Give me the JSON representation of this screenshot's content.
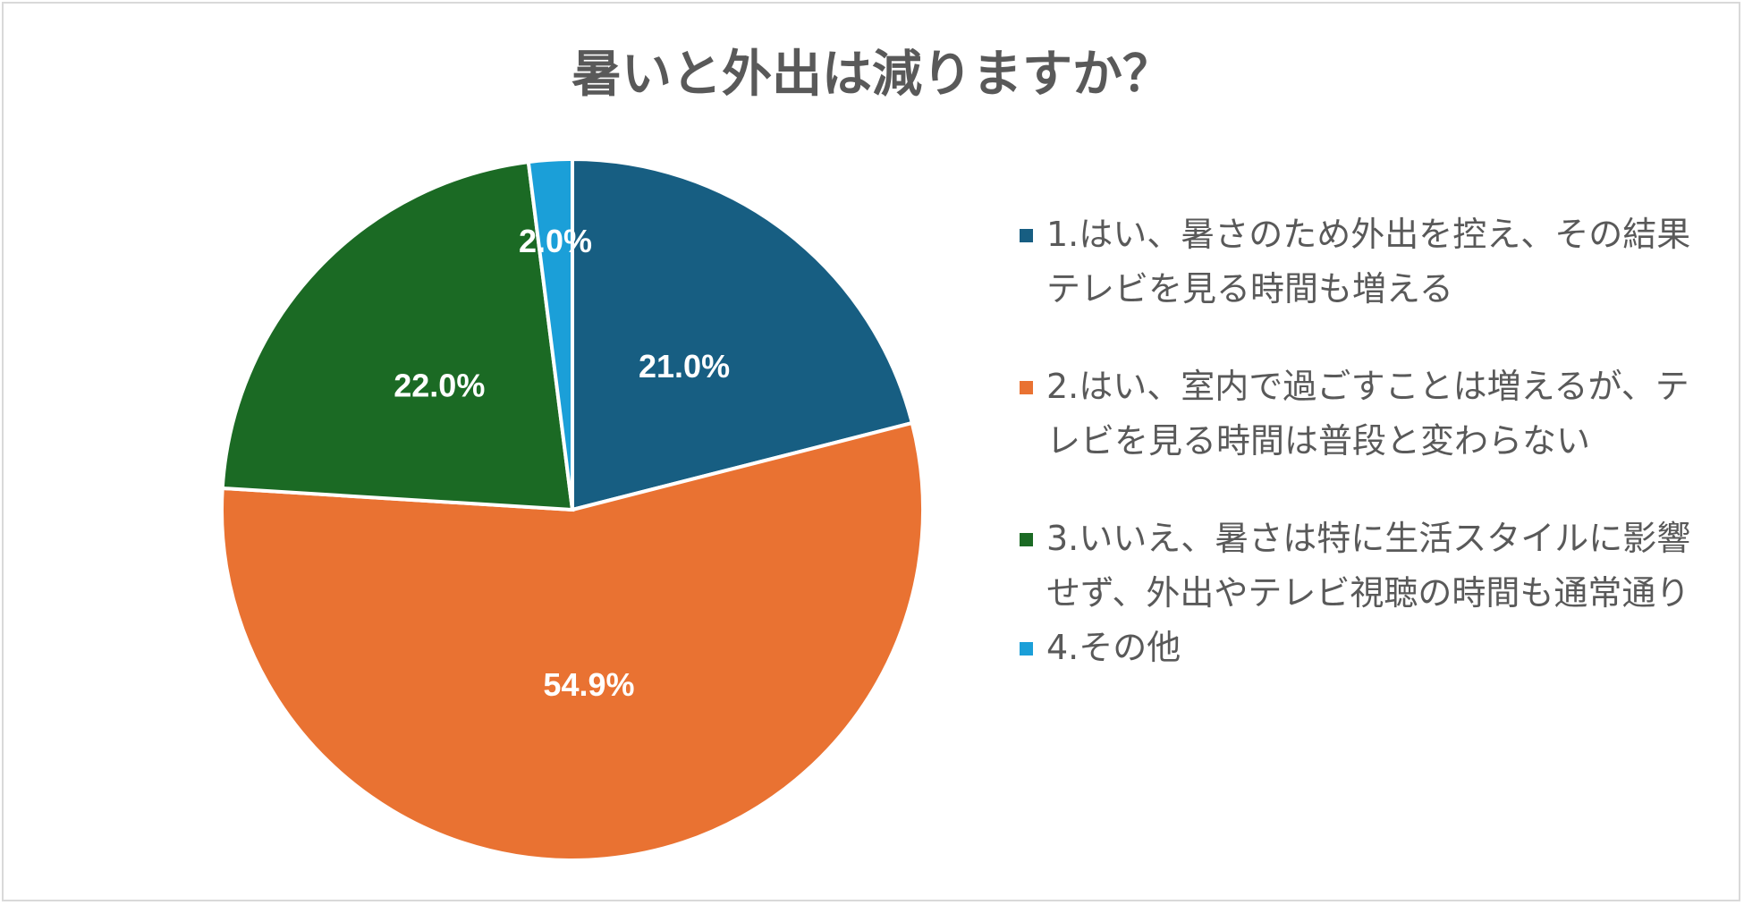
{
  "chart_data": {
    "type": "pie",
    "title": "暑いと外出は減りますか？",
    "categories": [
      "1.はい、暑さのため外出を控え、その結果テレビを見る時間も増える",
      "2.はい、室内で過ごすことは増えるが、テレビを見る時間は普段と変わらない",
      "3.いいえ、暑さは特に生活スタイルに影響せず、外出やテレビ視聴の時間も通常通り",
      "4.その他"
    ],
    "values": [
      21.0,
      54.9,
      22.0,
      2.0
    ],
    "data_labels": [
      "21.0%",
      "54.9%",
      "22.0%",
      "2.0%"
    ],
    "colors": [
      "#175e82",
      "#e97232",
      "#1b6a24",
      "#1b9fd8"
    ],
    "legend_position": "right"
  }
}
